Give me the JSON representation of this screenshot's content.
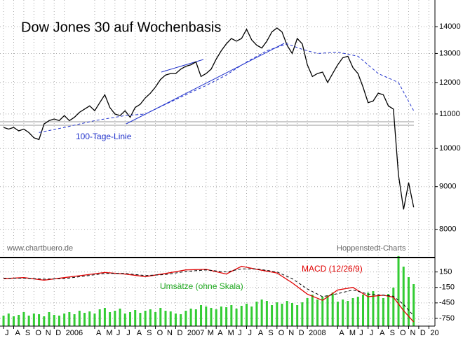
{
  "chart_data": [
    {
      "type": "line",
      "title": "Dow Jones 30 auf Wochenbasis",
      "source": "www.chartbuero.de",
      "credit": "Hoppenstedt-Charts",
      "log_scale": true,
      "grid": true,
      "xlim": [
        -0.35,
        42.6
      ],
      "ylim": [
        7400,
        15070
      ],
      "yticks": [
        8000,
        9000,
        10000,
        11000,
        12000,
        13000,
        14000
      ],
      "x": [
        0,
        0.5,
        1,
        1.5,
        2,
        2.5,
        3,
        3.5,
        4,
        4.5,
        5,
        5.5,
        6,
        6.5,
        7,
        7.5,
        8,
        8.5,
        9,
        9.5,
        10,
        10.5,
        11,
        11.5,
        12,
        12.5,
        13,
        13.5,
        14,
        14.5,
        15,
        15.5,
        16,
        16.5,
        17,
        17.5,
        18,
        18.5,
        19,
        19.5,
        20,
        20.5,
        21,
        21.5,
        22,
        22.5,
        23,
        23.5,
        24,
        24.5,
        25,
        25.5,
        26,
        26.5,
        27,
        27.5,
        28,
        28.5,
        29,
        29.5,
        30,
        30.5,
        31,
        31.5,
        32,
        32.5,
        33,
        33.5,
        34,
        34.5,
        35,
        35.5,
        36,
        36.5,
        37,
        37.5,
        38,
        38.5,
        39,
        39.5,
        40,
        40.5
      ],
      "series": [
        {
          "color": "#000000",
          "values": [
            10600,
            10550,
            10600,
            10500,
            10550,
            10450,
            10300,
            10250,
            10700,
            10800,
            10850,
            10800,
            10950,
            10800,
            10900,
            11050,
            11150,
            11250,
            11100,
            11350,
            11600,
            11200,
            11000,
            10950,
            11100,
            10900,
            11200,
            11300,
            11500,
            11650,
            11850,
            12100,
            12250,
            12300,
            12300,
            12450,
            12550,
            12600,
            12700,
            12200,
            12300,
            12450,
            12800,
            13100,
            13350,
            13550,
            13450,
            13550,
            13900,
            13500,
            13300,
            13200,
            13450,
            13800,
            13950,
            13800,
            13300,
            13000,
            13550,
            13350,
            12600,
            12200,
            12300,
            12350,
            12000,
            12300,
            12600,
            12850,
            12900,
            12500,
            12300,
            11850,
            11350,
            11400,
            11650,
            11600,
            11250,
            11150,
            9300,
            8450,
            9100,
            8500
          ]
        },
        {
          "name": "100-Tage-Linie",
          "color": "#2233cc",
          "dashed": true,
          "x": [
            3.5,
            6,
            9,
            12,
            14,
            16,
            18,
            20,
            22,
            24,
            26,
            28,
            29.5,
            31,
            33,
            35,
            37,
            39,
            40.5
          ],
          "values": [
            10450,
            10600,
            10800,
            10950,
            11000,
            11300,
            11600,
            11900,
            12250,
            12700,
            13100,
            13350,
            13150,
            13000,
            13050,
            12900,
            12300,
            12000,
            11100
          ]
        }
      ]
    },
    {
      "type": "line",
      "grid": true,
      "xlim": [
        -0.35,
        42.6
      ],
      "ylim": [
        -900,
        430
      ],
      "yticks": [
        150,
        -150,
        -450,
        -750
      ],
      "xticks": [
        {
          "value": 0,
          "label": "J"
        },
        {
          "value": 1,
          "label": "A"
        },
        {
          "value": 2,
          "label": "S"
        },
        {
          "value": 3,
          "label": "O"
        },
        {
          "value": 4,
          "label": "N"
        },
        {
          "value": 5,
          "label": "D"
        },
        {
          "value": 6,
          "label": "2006"
        },
        {
          "value": 9,
          "label": "A"
        },
        {
          "value": 10,
          "label": "M"
        },
        {
          "value": 11,
          "label": "J"
        },
        {
          "value": 12,
          "label": "J"
        },
        {
          "value": 13,
          "label": "A"
        },
        {
          "value": 14,
          "label": "S"
        },
        {
          "value": 15,
          "label": "O"
        },
        {
          "value": 16,
          "label": "N"
        },
        {
          "value": 17,
          "label": "D"
        },
        {
          "value": 18,
          "label": "2007"
        },
        {
          "value": 20,
          "label": "M"
        },
        {
          "value": 21,
          "label": "A"
        },
        {
          "value": 22,
          "label": "M"
        },
        {
          "value": 23,
          "label": "J"
        },
        {
          "value": 24,
          "label": "J"
        },
        {
          "value": 25,
          "label": "A"
        },
        {
          "value": 26,
          "label": "S"
        },
        {
          "value": 27,
          "label": "O"
        },
        {
          "value": 28,
          "label": "N"
        },
        {
          "value": 29,
          "label": "D"
        },
        {
          "value": 30,
          "label": "2008"
        },
        {
          "value": 33,
          "label": "A"
        },
        {
          "value": 34,
          "label": "M"
        },
        {
          "value": 35,
          "label": "J"
        },
        {
          "value": 36,
          "label": "J"
        },
        {
          "value": 37,
          "label": "A"
        },
        {
          "value": 38,
          "label": "S"
        },
        {
          "value": 39,
          "label": "O"
        },
        {
          "value": 40,
          "label": "N"
        },
        {
          "value": 41,
          "label": "D"
        },
        {
          "value": 42,
          "label": "20"
        }
      ],
      "series": [
        {
          "name": "MACD (12/26/9)",
          "color": "#e00000",
          "x": [
            0,
            2,
            4,
            6,
            8,
            10,
            12,
            14,
            16,
            18,
            20,
            22,
            23.5,
            25,
            27,
            28.5,
            30,
            31.5,
            33,
            34.5,
            36,
            37.5,
            38.5,
            39.5,
            40.5
          ],
          "values": [
            20,
            40,
            -10,
            40,
            90,
            140,
            110,
            60,
            120,
            190,
            200,
            110,
            260,
            200,
            130,
            -60,
            -280,
            -400,
            -200,
            -150,
            -330,
            -300,
            -340,
            -600,
            -820
          ]
        },
        {
          "color": "#000000",
          "dashed": true,
          "x": [
            0,
            2,
            4,
            6,
            8,
            10,
            12,
            14,
            16,
            18,
            20,
            22,
            23.5,
            25,
            27,
            28.5,
            30,
            31.5,
            33,
            34.5,
            36,
            37.5,
            38.5,
            39.5,
            40.5
          ],
          "values": [
            30,
            30,
            10,
            20,
            70,
            120,
            120,
            80,
            100,
            160,
            190,
            150,
            210,
            210,
            150,
            20,
            -180,
            -330,
            -270,
            -200,
            -280,
            -300,
            -320,
            -480,
            -700
          ]
        },
        {
          "type": "bar",
          "name": "Umsätze (ohne Skala)",
          "color": "#33cc33",
          "x": [
            0,
            0.5,
            1,
            1.5,
            2,
            2.5,
            3,
            3.5,
            4,
            4.5,
            5,
            5.5,
            6,
            6.5,
            7,
            7.5,
            8,
            8.5,
            9,
            9.5,
            10,
            10.5,
            11,
            11.5,
            12,
            12.5,
            13,
            13.5,
            14,
            14.5,
            15,
            15.5,
            16,
            16.5,
            17,
            17.5,
            18,
            18.5,
            19,
            19.5,
            20,
            20.5,
            21,
            21.5,
            22,
            22.5,
            23,
            23.5,
            24,
            24.5,
            25,
            25.5,
            26,
            26.5,
            27,
            27.5,
            28,
            28.5,
            29,
            29.5,
            30,
            30.5,
            31,
            31.5,
            32,
            32.5,
            33,
            33.5,
            34,
            34.5,
            35,
            35.5,
            36,
            36.5,
            37,
            37.5,
            38,
            38.5,
            39,
            39.5,
            40,
            40.5
          ],
          "values": [
            15,
            18,
            14,
            16,
            20,
            15,
            18,
            17,
            14,
            20,
            16,
            15,
            18,
            20,
            17,
            22,
            19,
            21,
            18,
            24,
            26,
            20,
            22,
            25,
            18,
            20,
            23,
            19,
            22,
            24,
            20,
            26,
            22,
            21,
            18,
            17,
            22,
            25,
            24,
            30,
            28,
            26,
            24,
            28,
            27,
            30,
            25,
            29,
            32,
            28,
            35,
            38,
            36,
            30,
            34,
            32,
            36,
            33,
            30,
            34,
            40,
            45,
            38,
            42,
            44,
            48,
            35,
            38,
            36,
            40,
            42,
            45,
            48,
            50,
            44,
            40,
            46,
            55,
            100,
            85,
            70,
            60
          ]
        }
      ]
    }
  ]
}
